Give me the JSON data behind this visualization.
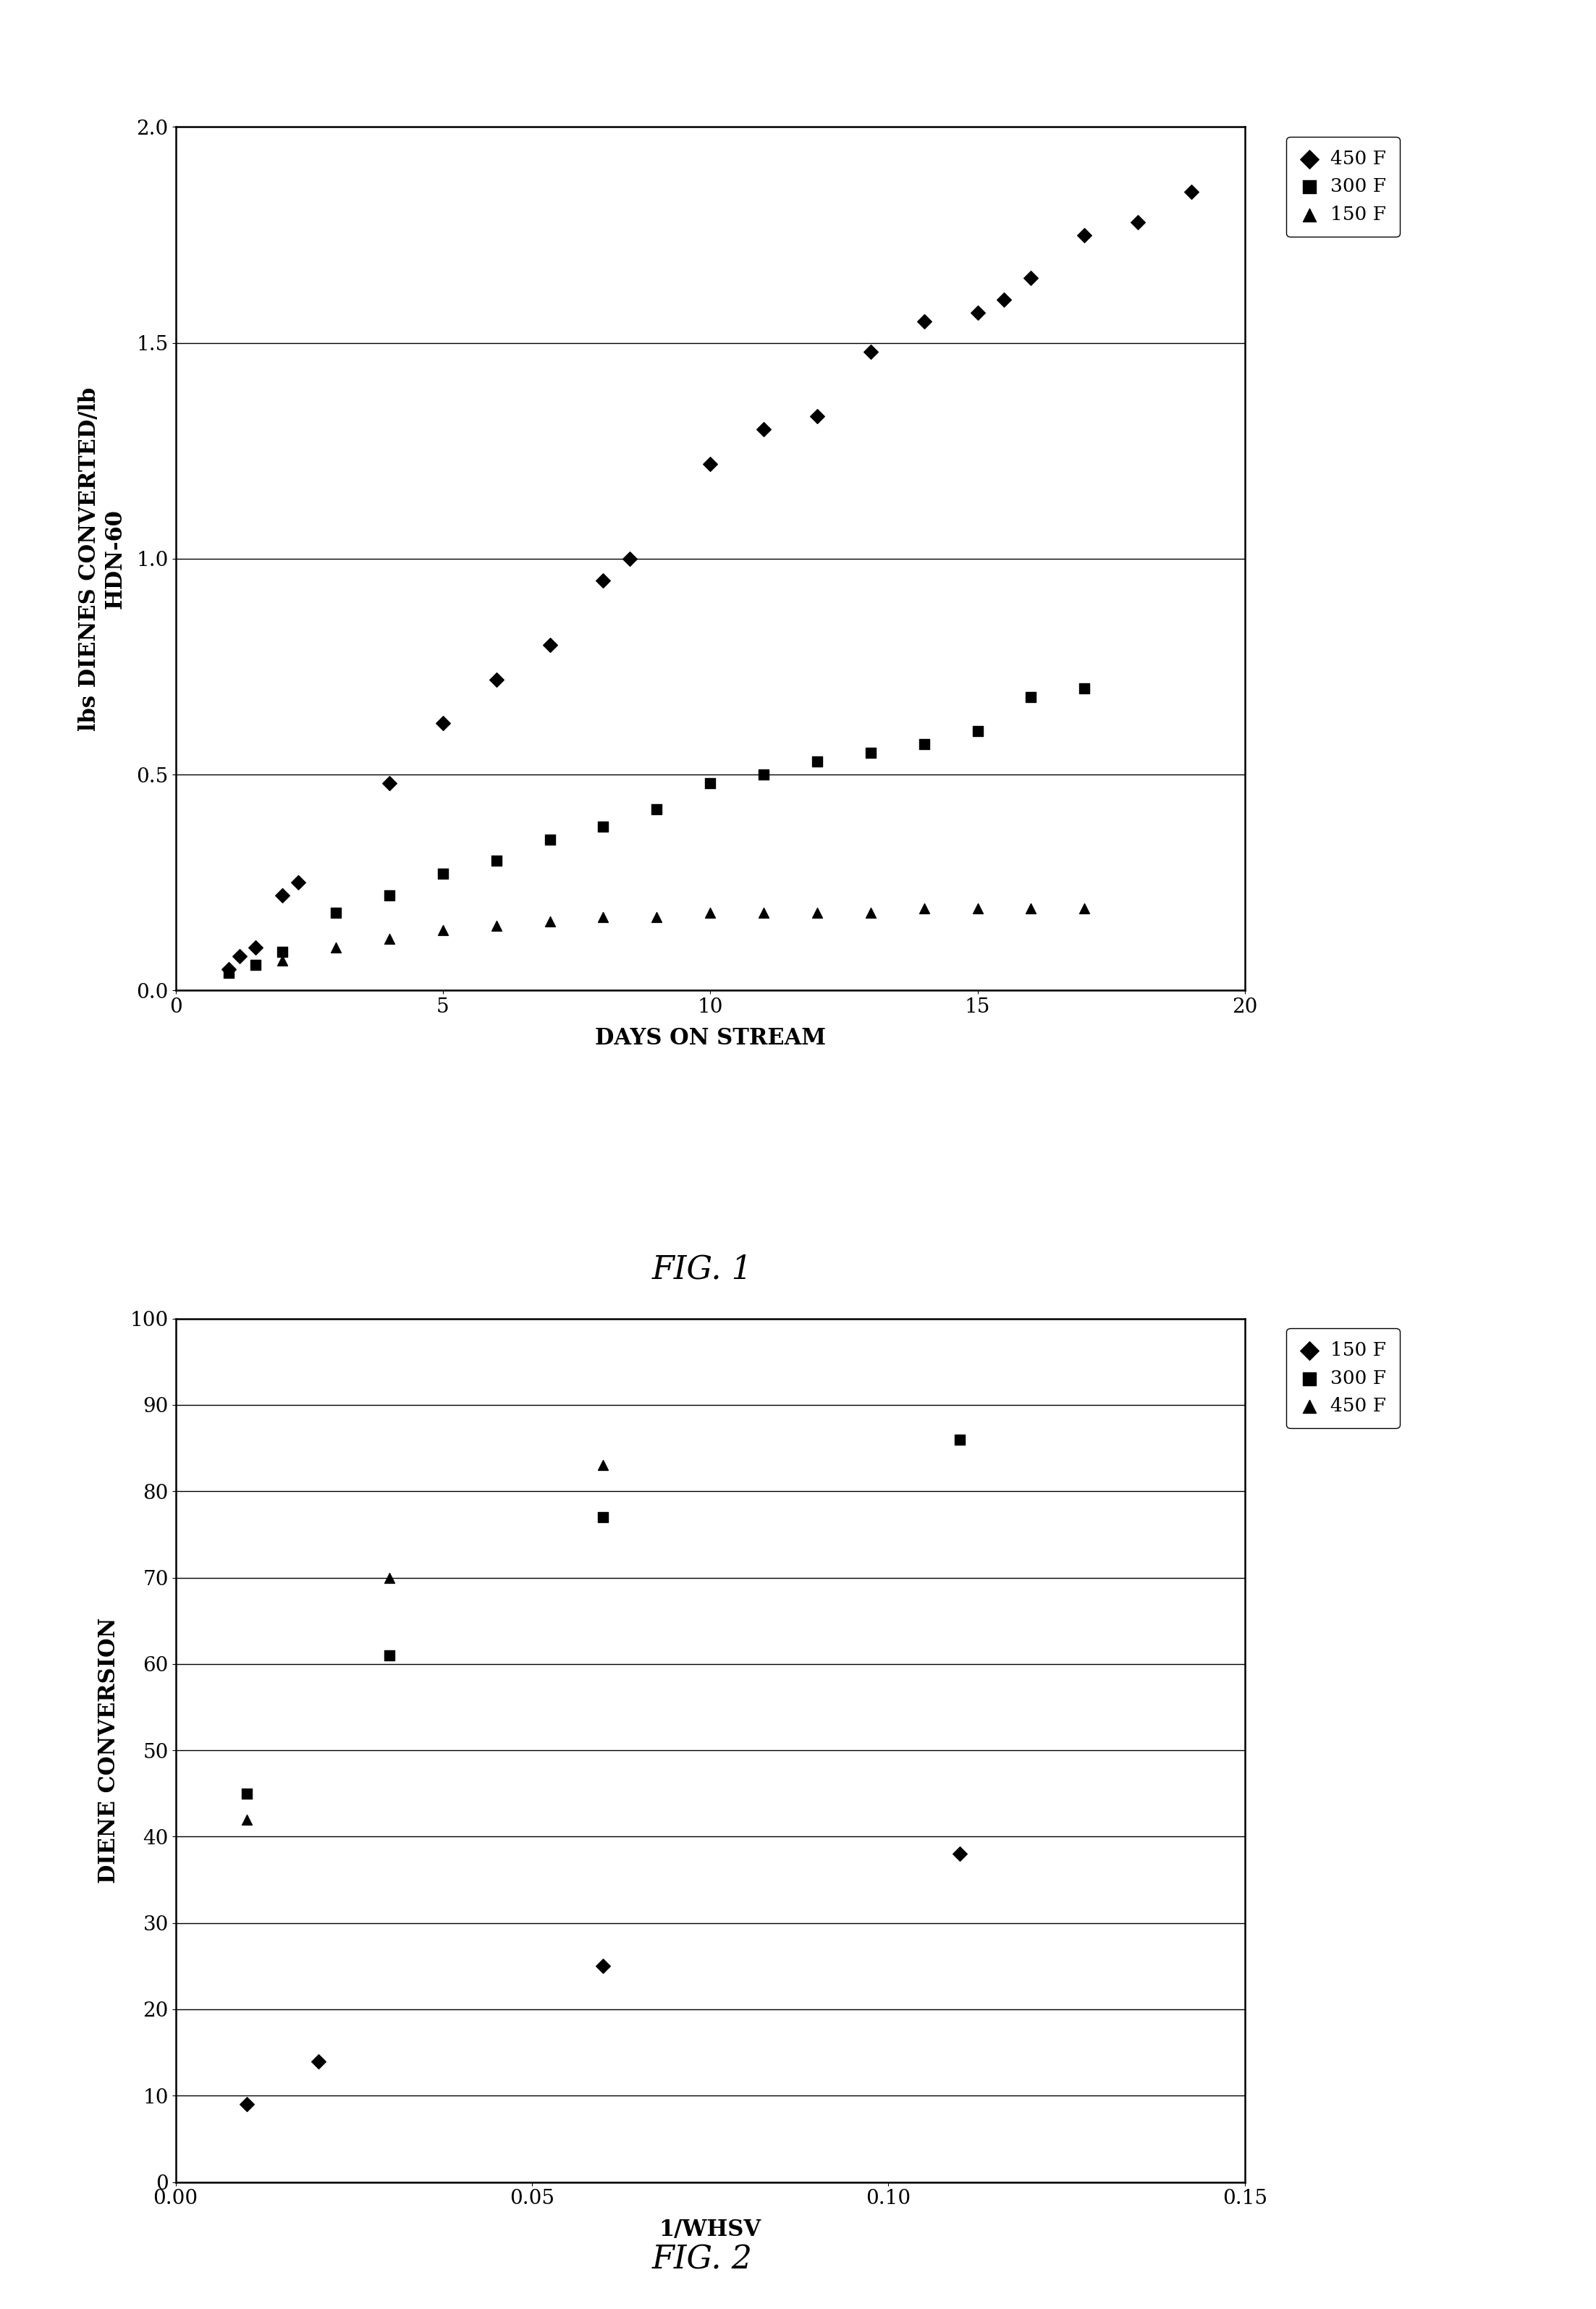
{
  "fig1": {
    "title": "FIG. 1",
    "xlabel": "DAYS ON STREAM",
    "ylabel": "lbs DIENES CONVERTED/lb\nHDN-60",
    "xlim": [
      0,
      20
    ],
    "ylim": [
      0,
      2
    ],
    "yticks": [
      0,
      0.5,
      1,
      1.5,
      2
    ],
    "xticks": [
      0,
      5,
      10,
      15,
      20
    ],
    "series": {
      "450F": {
        "x": [
          1,
          1.2,
          1.5,
          2,
          2.3,
          4,
          5,
          6,
          7,
          8,
          8.5,
          10,
          11,
          12,
          13,
          14,
          15,
          15.5,
          16,
          17,
          18,
          19
        ],
        "y": [
          0.05,
          0.08,
          0.1,
          0.22,
          0.25,
          0.48,
          0.62,
          0.72,
          0.8,
          0.95,
          1.0,
          1.22,
          1.3,
          1.33,
          1.48,
          1.55,
          1.57,
          1.6,
          1.65,
          1.75,
          1.78,
          1.85
        ],
        "marker": "D",
        "color": "black",
        "label": "450 F"
      },
      "300F": {
        "x": [
          1,
          1.5,
          2,
          3,
          4,
          5,
          6,
          7,
          8,
          9,
          10,
          11,
          12,
          13,
          14,
          15,
          16,
          17
        ],
        "y": [
          0.04,
          0.06,
          0.09,
          0.18,
          0.22,
          0.27,
          0.3,
          0.35,
          0.38,
          0.42,
          0.48,
          0.5,
          0.53,
          0.55,
          0.57,
          0.6,
          0.68,
          0.7
        ],
        "marker": "s",
        "color": "black",
        "label": "300 F"
      },
      "150F": {
        "x": [
          2,
          3,
          4,
          5,
          6,
          7,
          8,
          9,
          10,
          11,
          12,
          13,
          14,
          15,
          16,
          17
        ],
        "y": [
          0.07,
          0.1,
          0.12,
          0.14,
          0.15,
          0.16,
          0.17,
          0.17,
          0.18,
          0.18,
          0.18,
          0.18,
          0.19,
          0.19,
          0.19,
          0.19
        ],
        "marker": "^",
        "color": "black",
        "label": "150 F"
      }
    },
    "legend_order": [
      "450F",
      "300F",
      "150F"
    ]
  },
  "fig2": {
    "title": "FIG. 2",
    "xlabel": "1/WHSV",
    "ylabel": "DIENE CONVERSION",
    "xlim": [
      0,
      0.15
    ],
    "ylim": [
      0,
      100
    ],
    "yticks": [
      0,
      10,
      20,
      30,
      40,
      50,
      60,
      70,
      80,
      90,
      100
    ],
    "xticks": [
      0.0,
      0.05,
      0.1,
      0.15
    ],
    "xticklabels": [
      "0.00",
      "0.05",
      "0.10",
      "0.15"
    ],
    "series": {
      "150F": {
        "x": [
          0.01,
          0.02,
          0.06,
          0.11
        ],
        "y": [
          9,
          14,
          25,
          38
        ],
        "marker": "D",
        "color": "black",
        "label": "150 F"
      },
      "300F": {
        "x": [
          0.01,
          0.03,
          0.06,
          0.11
        ],
        "y": [
          45,
          61,
          77,
          86
        ],
        "marker": "s",
        "color": "black",
        "label": "300 F"
      },
      "450F": {
        "x": [
          0.01,
          0.03,
          0.06
        ],
        "y": [
          42,
          70,
          83
        ],
        "marker": "^",
        "color": "black",
        "label": "450 F"
      }
    },
    "legend_order": [
      "150F",
      "300F",
      "450F"
    ]
  },
  "background_color": "#ffffff",
  "font_family": "serif",
  "marker_size": 100,
  "tick_fontsize": 20,
  "label_fontsize": 22,
  "legend_fontsize": 19,
  "caption_fontsize": 32
}
